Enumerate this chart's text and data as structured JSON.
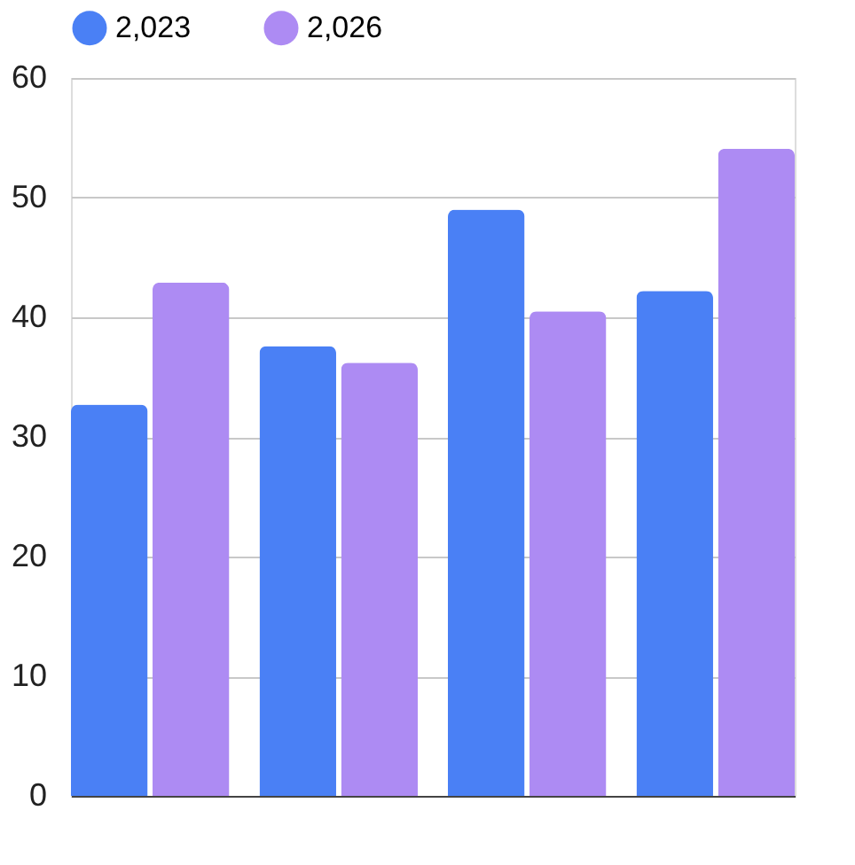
{
  "chart_data": {
    "type": "bar",
    "categories": [
      null,
      null,
      null,
      null
    ],
    "series": [
      {
        "name": "2,023",
        "color": "#4a80f5",
        "values": [
          32.7,
          37.6,
          49.0,
          42.2
        ]
      },
      {
        "name": "2,026",
        "color": "#ad8bf3",
        "values": [
          42.9,
          36.2,
          40.5,
          54.1
        ]
      }
    ],
    "ylim": [
      0,
      60
    ],
    "yticks": [
      0,
      10,
      20,
      30,
      40,
      50,
      60
    ],
    "grid": "y",
    "legend": "top",
    "tick_labels": "y"
  }
}
